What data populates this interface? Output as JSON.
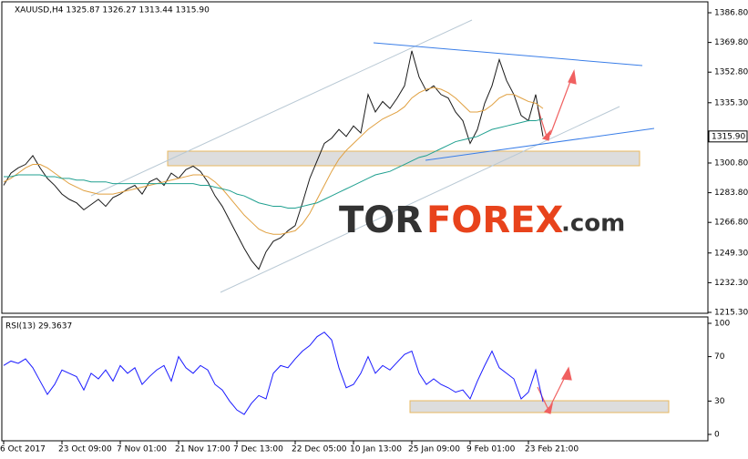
{
  "chart_data": [
    {
      "type": "line",
      "title": "XAUUSD,H4  1325.87 1326.27 1313.44 1315.90",
      "watermark": [
        "TOR",
        "FOREX",
        ".com"
      ],
      "last_price_label": "1315.90",
      "categories": [
        "6 Oct 2017",
        null,
        null,
        null,
        null,
        null,
        null,
        null,
        "23 Oct 09:00",
        null,
        null,
        null,
        null,
        null,
        null,
        null,
        "7 Nov 01:00",
        null,
        null,
        null,
        null,
        null,
        null,
        null,
        "21 Nov 17:00",
        null,
        null,
        null,
        null,
        null,
        null,
        null,
        "7 Dec 13:00",
        null,
        null,
        null,
        null,
        null,
        null,
        null,
        "22 Dec 05:00",
        null,
        null,
        null,
        null,
        null,
        null,
        null,
        "10 Jan 13:00",
        null,
        null,
        null,
        null,
        null,
        null,
        null,
        "25 Jan 09:00",
        null,
        null,
        null,
        null,
        null,
        null,
        null,
        "9 Feb 01:00",
        null,
        null,
        null,
        null,
        null,
        null,
        null,
        "23 Feb 21:00",
        null,
        null
      ],
      "series": [
        {
          "color": "#1a1a1a",
          "values": [
            1288,
            1295,
            1298,
            1300,
            1305,
            1298,
            1292,
            1288,
            1283,
            1280,
            1278,
            1274,
            1277,
            1280,
            1276,
            1281,
            1283,
            1286,
            1288,
            1283,
            1290,
            1292,
            1288,
            1295,
            1292,
            1297,
            1299,
            1296,
            1290,
            1282,
            1276,
            1268,
            1260,
            1252,
            1245,
            1240,
            1250,
            1256,
            1258,
            1262,
            1265,
            1278,
            1292,
            1302,
            1312,
            1315,
            1320,
            1316,
            1322,
            1318,
            1340,
            1330,
            1336,
            1332,
            1338,
            1345,
            1365,
            1350,
            1342,
            1345,
            1340,
            1338,
            1330,
            1325,
            1312,
            1320,
            1335,
            1345,
            1360,
            1348,
            1340,
            1328,
            1325,
            1340,
            1316
          ]
        },
        {
          "color": "#e0a040",
          "values": [
            1290,
            1292,
            1295,
            1298,
            1300,
            1300,
            1298,
            1295,
            1292,
            1289,
            1287,
            1285,
            1284,
            1283,
            1283,
            1283,
            1284,
            1285,
            1286,
            1287,
            1288,
            1289,
            1290,
            1291,
            1292,
            1293,
            1294,
            1294,
            1293,
            1290,
            1286,
            1281,
            1276,
            1271,
            1267,
            1263,
            1261,
            1260,
            1260,
            1261,
            1262,
            1266,
            1272,
            1280,
            1288,
            1296,
            1303,
            1308,
            1312,
            1316,
            1320,
            1323,
            1326,
            1328,
            1330,
            1333,
            1338,
            1341,
            1343,
            1344,
            1343,
            1341,
            1338,
            1334,
            1330,
            1330,
            1331,
            1334,
            1338,
            1340,
            1340,
            1338,
            1336,
            1335,
            1332
          ]
        },
        {
          "color": "#20a090",
          "values": [
            1293,
            1293,
            1294,
            1294,
            1294,
            1294,
            1293,
            1293,
            1292,
            1292,
            1291,
            1291,
            1290,
            1290,
            1290,
            1289,
            1289,
            1289,
            1289,
            1289,
            1289,
            1289,
            1289,
            1289,
            1289,
            1289,
            1289,
            1288,
            1288,
            1287,
            1286,
            1285,
            1283,
            1282,
            1280,
            1278,
            1277,
            1276,
            1276,
            1275,
            1275,
            1276,
            1277,
            1278,
            1280,
            1282,
            1284,
            1286,
            1288,
            1290,
            1292,
            1294,
            1295,
            1296,
            1298,
            1300,
            1302,
            1304,
            1305,
            1307,
            1309,
            1311,
            1313,
            1314,
            1315,
            1316,
            1318,
            1320,
            1321,
            1322,
            1323,
            1324,
            1325,
            1325,
            1326
          ]
        }
      ],
      "ylim": [
        1215.3,
        1386.8
      ],
      "yticks": [
        {
          "value": 1215.3,
          "label": "1215.30"
        },
        {
          "value": 1232.3,
          "label": "1232.30"
        },
        {
          "value": 1249.3,
          "label": "1249.30"
        },
        {
          "value": 1266.8,
          "label": "1266.80"
        },
        {
          "value": 1283.8,
          "label": "1283.80"
        },
        {
          "value": 1300.8,
          "label": "1300.80"
        },
        {
          "value": 1335.3,
          "label": "1335.30"
        },
        {
          "value": 1352.8,
          "label": "1352.80"
        },
        {
          "value": 1369.8,
          "label": "1369.80"
        },
        {
          "value": 1386.8,
          "label": "1386.80"
        }
      ]
    },
    {
      "type": "line",
      "title": "RSI(13) 29.3637",
      "color": "#1a1aff",
      "values": [
        62,
        66,
        64,
        68,
        60,
        48,
        36,
        45,
        58,
        55,
        52,
        40,
        55,
        50,
        58,
        48,
        62,
        55,
        60,
        45,
        52,
        58,
        62,
        48,
        70,
        60,
        55,
        62,
        58,
        45,
        40,
        30,
        22,
        18,
        28,
        35,
        32,
        55,
        62,
        60,
        68,
        75,
        80,
        88,
        92,
        85,
        60,
        42,
        45,
        55,
        70,
        55,
        62,
        58,
        65,
        72,
        75,
        55,
        45,
        50,
        45,
        42,
        38,
        40,
        32,
        48,
        62,
        75,
        60,
        55,
        50,
        32,
        38,
        58,
        29.3637
      ],
      "ylim": [
        0,
        100
      ],
      "yticks": [
        0,
        30,
        70,
        100
      ]
    }
  ]
}
